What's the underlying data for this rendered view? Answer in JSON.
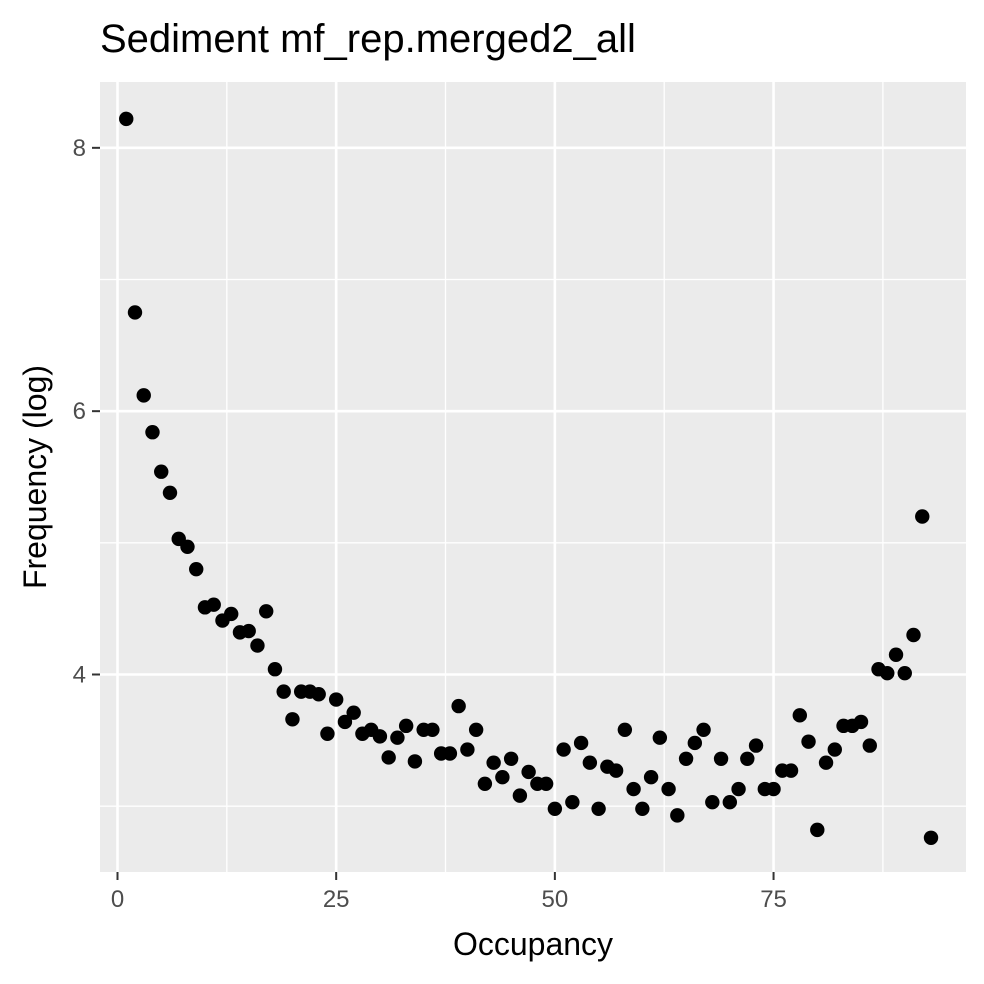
{
  "chart_data": {
    "type": "scatter",
    "title": "Sediment mf_rep.merged2_all",
    "xlabel": "Occupancy",
    "ylabel": "Frequency (log)",
    "xlim": [
      -2,
      97
    ],
    "ylim": [
      2.5,
      8.5
    ],
    "x_major_ticks": [
      0,
      25,
      50,
      75
    ],
    "x_minor_ticks": [
      12.5,
      37.5,
      62.5,
      87.5
    ],
    "y_major_ticks": [
      4,
      6,
      8
    ],
    "y_minor_ticks": [
      3,
      5,
      7
    ],
    "grid": true,
    "point_color": "#000000",
    "panel_background": "#ebebeb",
    "grid_color": "#ffffff",
    "x": [
      1,
      2,
      3,
      4,
      5,
      6,
      7,
      8,
      9,
      10,
      11,
      12,
      13,
      14,
      15,
      16,
      17,
      18,
      19,
      20,
      21,
      22,
      23,
      24,
      25,
      26,
      27,
      28,
      29,
      30,
      31,
      32,
      33,
      34,
      35,
      36,
      37,
      38,
      39,
      40,
      41,
      42,
      43,
      44,
      45,
      46,
      47,
      48,
      49,
      50,
      51,
      52,
      53,
      54,
      55,
      56,
      57,
      58,
      59,
      60,
      61,
      62,
      63,
      64,
      65,
      66,
      67,
      68,
      69,
      70,
      71,
      72,
      73,
      74,
      75,
      76,
      77,
      78,
      79,
      80,
      81,
      82,
      83,
      84,
      85,
      86,
      87,
      88,
      89,
      90,
      91,
      92,
      93
    ],
    "y": [
      8.22,
      6.75,
      6.12,
      5.84,
      5.54,
      5.38,
      5.03,
      4.97,
      4.8,
      4.51,
      4.53,
      4.41,
      4.46,
      4.32,
      4.33,
      4.22,
      4.48,
      4.04,
      3.87,
      3.66,
      3.87,
      3.87,
      3.85,
      3.55,
      3.81,
      3.64,
      3.71,
      3.55,
      3.58,
      3.53,
      3.37,
      3.52,
      3.61,
      3.34,
      3.58,
      3.58,
      3.4,
      3.4,
      3.76,
      3.43,
      3.58,
      3.17,
      3.33,
      3.22,
      3.36,
      3.08,
      3.26,
      3.17,
      3.17,
      2.98,
      3.43,
      3.03,
      3.48,
      3.33,
      2.98,
      3.3,
      3.27,
      3.58,
      3.13,
      2.98,
      3.22,
      3.52,
      3.13,
      2.93,
      3.36,
      3.48,
      3.58,
      3.03,
      3.36,
      3.03,
      3.13,
      3.36,
      3.46,
      3.13,
      3.13,
      3.27,
      3.27,
      3.69,
      3.49,
      2.82,
      3.33,
      3.43,
      3.61,
      3.61,
      3.64,
      3.46,
      4.04,
      4.01,
      4.15,
      4.01,
      4.3,
      5.2,
      2.76
    ]
  }
}
